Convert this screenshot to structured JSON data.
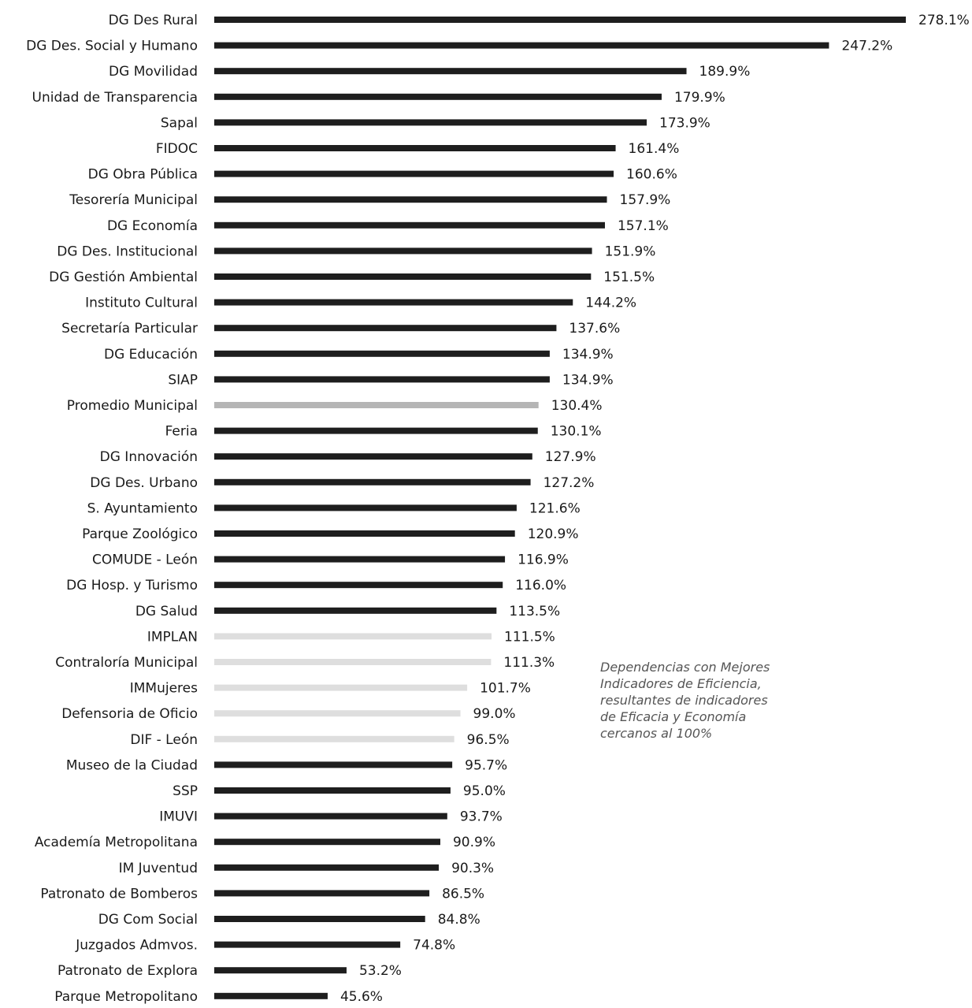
{
  "chart_data": {
    "type": "bar",
    "orientation": "horizontal",
    "title": "",
    "xlabel": "",
    "ylabel": "",
    "unit": "%",
    "xlim": [
      0,
      278.1
    ],
    "grid": false,
    "legend": "none",
    "categories": [
      "DG Des Rural",
      "DG  Des. Social y  Humano",
      "DG Movilidad",
      "Unidad de Transparencia",
      "Sapal",
      "FIDOC",
      "DG Obra Pública",
      "Tesorería Municipal",
      "DG Economía",
      "DG Des. Institucional",
      "DG Gestión Ambiental",
      "Instituto Cultural",
      "Secretaría Particular",
      "DG Educación",
      "SIAP",
      "Promedio Municipal",
      "Feria",
      "DG Innovación",
      "DG Des. Urbano",
      "S. Ayuntamiento",
      "Parque Zoológico",
      "COMUDE - León",
      "DG Hosp. y Turismo",
      "DG Salud",
      "IMPLAN",
      "Contraloría Municipal",
      "IMMujeres",
      "Defensoria de Oficio",
      "DIF - León",
      "Museo de la Ciudad",
      "SSP",
      "IMUVI",
      "Academía Metropolitana",
      "IM Juventud",
      "Patronato de Bomberos",
      "DG Com Social",
      "Juzgados Admvos.",
      "Patronato de Explora",
      "Parque Metropolitano"
    ],
    "values": [
      278.1,
      247.2,
      189.9,
      179.9,
      173.9,
      161.4,
      160.6,
      157.9,
      157.1,
      151.9,
      151.5,
      144.2,
      137.6,
      134.9,
      134.9,
      130.4,
      130.1,
      127.9,
      127.2,
      121.6,
      120.9,
      116.9,
      116.0,
      113.5,
      111.5,
      111.3,
      101.7,
      99.0,
      96.5,
      95.7,
      95.0,
      93.7,
      90.9,
      90.3,
      86.5,
      84.8,
      74.8,
      53.2,
      45.6
    ],
    "value_labels": [
      "278.1%",
      "247.2%",
      "189.9%",
      "179.9%",
      "173.9%",
      "161.4%",
      "160.6%",
      "157.9%",
      "157.1%",
      "151.9%",
      "151.5%",
      "144.2%",
      "137.6%",
      "134.9%",
      "134.9%",
      "130.4%",
      "130.1%",
      "127.9%",
      "127.2%",
      "121.6%",
      "120.9%",
      "116.9%",
      "116.0%",
      "113.5%",
      "111.5%",
      "111.3%",
      "101.7%",
      "99.0%",
      "96.5%",
      "95.7%",
      "95.0%",
      "93.7%",
      "90.9%",
      "90.3%",
      "86.5%",
      "84.8%",
      "74.8%",
      "53.2%",
      "45.6%"
    ],
    "bar_styles": [
      "dark",
      "dark",
      "dark",
      "dark",
      "dark",
      "dark",
      "dark",
      "dark",
      "dark",
      "dark",
      "dark",
      "dark",
      "dark",
      "dark",
      "dark",
      "average",
      "dark",
      "dark",
      "dark",
      "dark",
      "dark",
      "dark",
      "dark",
      "dark",
      "light",
      "light",
      "light",
      "light",
      "light",
      "dark",
      "dark",
      "dark",
      "dark",
      "dark",
      "dark",
      "dark",
      "dark",
      "dark",
      "dark"
    ],
    "colors": {
      "dark": "#1e1e1e",
      "average": "#b5b5b5",
      "light": "#dedede",
      "text": "#1a1a1a"
    }
  },
  "annotation": {
    "lines": [
      "Dependencias con Mejores",
      "Indicadores de Eficiencia,",
      "resultantes de indicadores",
      "de Eficacia y Economía",
      "cercanos al 100%"
    ]
  }
}
